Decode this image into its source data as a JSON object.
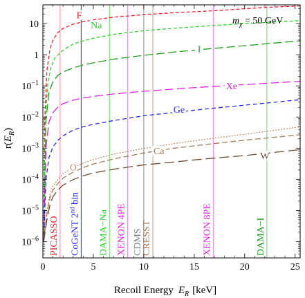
{
  "chart_data": {
    "type": "line",
    "xlabel": "Recoil Energy",
    "xlabel_symbol": "E",
    "xlabel_sub": "R",
    "xlabel_unit": "[keV]",
    "ylabel": "r(",
    "ylabel_symbol": "E",
    "ylabel_sub": "R",
    "ylabel_close": ")",
    "annotation": "m",
    "annotation_sub": "χ",
    "annotation_value": " = 50 GeV",
    "xlim": [
      0,
      25.5
    ],
    "ylog": true,
    "ylim": [
      3e-07,
      40
    ],
    "xticks": [
      0,
      5,
      10,
      15,
      20,
      25
    ],
    "yticks": [
      {
        "value": 1e-06,
        "label": "10",
        "exp": "−6"
      },
      {
        "value": 1e-05,
        "label": "10",
        "exp": "−5"
      },
      {
        "value": 0.0001,
        "label": "10",
        "exp": "−4"
      },
      {
        "value": 0.001,
        "label": "10",
        "exp": "−3"
      },
      {
        "value": 0.01,
        "label": "10",
        "exp": "−2"
      },
      {
        "value": 0.1,
        "label": "10",
        "exp": "−1"
      },
      {
        "value": 1,
        "label": "1",
        "exp": ""
      },
      {
        "value": 10,
        "label": "10",
        "exp": ""
      }
    ],
    "series": [
      {
        "name": "F",
        "color": "#e8202a",
        "dash": "5,3",
        "labelX": 3.6,
        "labelY": 19,
        "points": [
          [
            0.08,
            1e-06
          ],
          [
            0.2,
            0.01
          ],
          [
            0.4,
            0.3
          ],
          [
            0.7,
            1.5
          ],
          [
            1,
            3
          ],
          [
            1.5,
            5.2
          ],
          [
            2,
            7
          ],
          [
            3,
            9.6
          ],
          [
            4,
            11.5
          ],
          [
            5,
            13.2
          ],
          [
            7,
            16
          ],
          [
            10,
            19.4
          ],
          [
            13,
            22.3
          ],
          [
            16,
            25
          ],
          [
            17.5,
            26.5
          ],
          [
            18,
            27
          ],
          [
            20,
            30
          ],
          [
            22,
            33
          ],
          [
            25.5,
            37
          ]
        ]
      },
      {
        "name": "Na",
        "color": "#2ad42a",
        "dash": "5,3",
        "labelX": 5.3,
        "labelY": 9,
        "points": [
          [
            0.08,
            1e-06
          ],
          [
            0.25,
            0.01
          ],
          [
            0.5,
            0.13
          ],
          [
            0.8,
            0.4
          ],
          [
            1.2,
            0.8
          ],
          [
            2,
            1.4
          ],
          [
            3,
            2.2
          ],
          [
            4,
            2.8
          ],
          [
            5,
            3.4
          ],
          [
            7,
            4.5
          ],
          [
            10,
            5.9
          ],
          [
            13,
            7.1
          ],
          [
            16,
            8.3
          ],
          [
            20,
            10
          ],
          [
            25.5,
            12.5
          ]
        ]
      },
      {
        "name": "I",
        "color": "#1f9a1f",
        "dash": "12,5",
        "labelX": 15.5,
        "labelY": 1.55,
        "points": [
          [
            0.08,
            1e-06
          ],
          [
            0.3,
            0.008
          ],
          [
            0.6,
            0.06
          ],
          [
            1,
            0.14
          ],
          [
            1.5,
            0.22
          ],
          [
            2,
            0.28
          ],
          [
            3,
            0.38
          ],
          [
            4,
            0.47
          ],
          [
            5,
            0.55
          ],
          [
            7,
            0.72
          ],
          [
            10,
            0.96
          ],
          [
            13,
            1.22
          ],
          [
            16,
            1.5
          ],
          [
            20,
            1.95
          ],
          [
            25.5,
            2.8
          ]
        ]
      },
      {
        "name": "Xe",
        "color": "#e020e0",
        "dash": "12,5",
        "labelX": 18.7,
        "labelY": 0.1,
        "points": [
          [
            0.08,
            1e-06
          ],
          [
            0.3,
            0.001
          ],
          [
            0.6,
            0.007
          ],
          [
            1,
            0.014
          ],
          [
            1.5,
            0.021
          ],
          [
            2,
            0.027
          ],
          [
            3,
            0.035
          ],
          [
            4,
            0.041
          ],
          [
            5,
            0.046
          ],
          [
            7,
            0.055
          ],
          [
            10,
            0.067
          ],
          [
            13,
            0.079
          ],
          [
            16,
            0.092
          ],
          [
            20,
            0.11
          ],
          [
            25.5,
            0.14
          ]
        ]
      },
      {
        "name": "Ge",
        "color": "#2828e0",
        "dash": "6,4",
        "labelX": 13.5,
        "labelY": 0.018,
        "points": [
          [
            0.08,
            1e-06
          ],
          [
            0.3,
            0.0001
          ],
          [
            0.6,
            0.0005
          ],
          [
            1,
            0.0011
          ],
          [
            1.5,
            0.0018
          ],
          [
            2,
            0.0025
          ],
          [
            3,
            0.0038
          ],
          [
            4,
            0.0049
          ],
          [
            5,
            0.0058
          ],
          [
            7,
            0.0077
          ],
          [
            10,
            0.011
          ],
          [
            13,
            0.014
          ],
          [
            16,
            0.018
          ],
          [
            20,
            0.024
          ],
          [
            25.5,
            0.036
          ]
        ]
      },
      {
        "name": "O",
        "color": "#c0906a",
        "dash": "2,2",
        "labelX": 3.0,
        "labelY": 0.00025,
        "points": [
          [
            0.08,
            1e-06
          ],
          [
            0.4,
            1e-05
          ],
          [
            0.7,
            3.2e-05
          ],
          [
            1,
            6e-05
          ],
          [
            1.5,
            0.0001
          ],
          [
            2,
            0.00015
          ],
          [
            3,
            0.00024
          ],
          [
            4,
            0.00033
          ],
          [
            5,
            0.00043
          ],
          [
            7,
            0.00064
          ],
          [
            10,
            0.00098
          ],
          [
            13,
            0.0014
          ],
          [
            16,
            0.0019
          ],
          [
            20,
            0.0028
          ],
          [
            25.5,
            0.0048
          ]
        ]
      },
      {
        "name": "Ca",
        "color": "#a47a56",
        "dash": "8,4",
        "labelX": 11.5,
        "labelY": 0.00082,
        "points": [
          [
            0.08,
            1e-06
          ],
          [
            0.4,
            8e-06
          ],
          [
            0.7,
            2.5e-05
          ],
          [
            1,
            4.5e-05
          ],
          [
            1.5,
            7.5e-05
          ],
          [
            2,
            0.00011
          ],
          [
            3,
            0.00017
          ],
          [
            4,
            0.00024
          ],
          [
            5,
            0.00031
          ],
          [
            7,
            0.00045
          ],
          [
            10,
            0.0007
          ],
          [
            13,
            0.001
          ],
          [
            16,
            0.0013
          ],
          [
            20,
            0.0018
          ],
          [
            25.5,
            0.0027
          ]
        ]
      },
      {
        "name": "W",
        "color": "#6b4a2e",
        "dash": "14,6",
        "labelX": 22.0,
        "labelY": 0.00058,
        "points": [
          [
            0.08,
            1e-06
          ],
          [
            0.4,
            5e-06
          ],
          [
            0.7,
            1.5e-05
          ],
          [
            1,
            2.8e-05
          ],
          [
            1.5,
            4.6e-05
          ],
          [
            2,
            6.5e-05
          ],
          [
            3,
            9.8e-05
          ],
          [
            4,
            0.00013
          ],
          [
            5,
            0.00016
          ],
          [
            7,
            0.00021
          ],
          [
            10,
            0.00029
          ],
          [
            13,
            0.00036
          ],
          [
            16,
            0.00045
          ],
          [
            20,
            0.00058
          ],
          [
            25.5,
            0.0009
          ]
        ]
      }
    ],
    "thresholds": [
      {
        "name": "PICASSO",
        "x": 1.7,
        "lineColor": "#f6a0ae",
        "textColor": "#e8202a",
        "lines": [
          {
            "t": "PICASSO"
          }
        ]
      },
      {
        "name": "CoGeNT 2nd bin",
        "x": 3.8,
        "lineColor": "#505090",
        "textColor": "#2828e0",
        "lines": [
          {
            "t": "CoGeNT 2",
            "sup": "nd",
            "t2": " bin"
          }
        ]
      },
      {
        "name": "DAMA−Na",
        "x": 6.6,
        "lineColor": "#7ee07e",
        "textColor": "#2ad42a",
        "lines": [
          {
            "t": "DAMA−Na"
          }
        ]
      },
      {
        "name": "XENON 4PE",
        "x": 8.4,
        "lineColor": "#f090f0",
        "textColor": "#e020e0",
        "lines": [
          {
            "t": "XENON 4PE"
          }
        ]
      },
      {
        "name": "CDMS",
        "x": 10.0,
        "lineColor": "#a0a0a0",
        "textColor": "#808080",
        "lines": [
          {
            "t": "CDMS"
          }
        ]
      },
      {
        "name": "CRESST",
        "x": 10.9,
        "lineColor": "#c8b098",
        "textColor": "#a47a56",
        "lines": [
          {
            "t": "CRESST"
          }
        ]
      },
      {
        "name": "XENON 8PE",
        "x": 16.9,
        "lineColor": "#f090f0",
        "textColor": "#e020e0",
        "lines": [
          {
            "t": "XENON 8PE"
          }
        ]
      },
      {
        "name": "DAMA−I",
        "x": 22.2,
        "lineColor": "#7ee07e",
        "textColor": "#1f9a1f",
        "lines": [
          {
            "t": "DAMA−I"
          }
        ]
      }
    ]
  }
}
